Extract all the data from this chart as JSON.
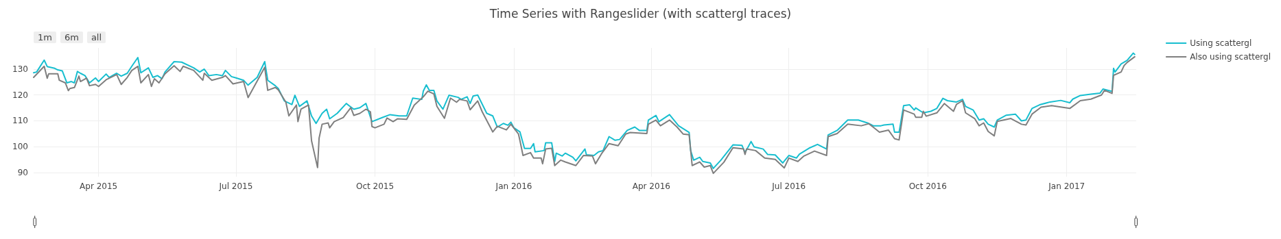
{
  "chart_data": {
    "type": "line",
    "title": "Time Series with Rangeslider (with scattergl traces)",
    "annotations": [
      "1m",
      "6m",
      "all"
    ],
    "xlim": [
      "2015-02-17",
      "2017-02-16"
    ],
    "xticks": [
      {
        "value": "2015-04-01",
        "label": "Apr 2015"
      },
      {
        "value": "2015-07-01",
        "label": "Jul 2015"
      },
      {
        "value": "2015-10-01",
        "label": "Oct 2015"
      },
      {
        "value": "2016-01-01",
        "label": "Jan 2016"
      },
      {
        "value": "2016-04-01",
        "label": "Apr 2016"
      },
      {
        "value": "2016-07-01",
        "label": "Jul 2016"
      },
      {
        "value": "2016-10-01",
        "label": "Oct 2016"
      },
      {
        "value": "2017-01-01",
        "label": "Jan 2017"
      }
    ],
    "ylim": [
      88.4,
      138.2
    ],
    "yticks": [
      90,
      100,
      110,
      120,
      130
    ],
    "grid": true,
    "legend": "top right",
    "marker": "none",
    "line_style": "solid",
    "series": [
      {
        "name": "Using scattergl",
        "color": "#17becf",
        "x": [
          "2015-02-17",
          "2015-02-19",
          "2015-02-24",
          "2015-02-26",
          "2015-03-03",
          "2015-03-05",
          "2015-03-08",
          "2015-03-11",
          "2015-03-14",
          "2015-03-16",
          "2015-03-18",
          "2015-03-20",
          "2015-03-23",
          "2015-03-26",
          "2015-03-30",
          "2015-04-01",
          "2015-04-06",
          "2015-04-08",
          "2015-04-13",
          "2015-04-16",
          "2015-04-20",
          "2015-04-23",
          "2015-04-27",
          "2015-04-29",
          "2015-05-04",
          "2015-05-07",
          "2015-05-10",
          "2015-05-13",
          "2015-05-15",
          "2015-05-21",
          "2015-05-26",
          "2015-06-03",
          "2015-06-07",
          "2015-06-10",
          "2015-06-13",
          "2015-06-18",
          "2015-06-22",
          "2015-06-24",
          "2015-06-28",
          "2015-07-01",
          "2015-07-06",
          "2015-07-09",
          "2015-07-15",
          "2015-07-20",
          "2015-07-22",
          "2015-07-27",
          "2015-07-29",
          "2015-08-02",
          "2015-08-07",
          "2015-08-09",
          "2015-08-12",
          "2015-08-17",
          "2015-08-20",
          "2015-08-23",
          "2015-08-27",
          "2015-08-30",
          "2015-09-01",
          "2015-09-06",
          "2015-09-12",
          "2015-09-17",
          "2015-09-21",
          "2015-09-25",
          "2015-09-29",
          "2015-10-06",
          "2015-10-11",
          "2015-10-17",
          "2015-10-22",
          "2015-10-26",
          "2015-11-01",
          "2015-11-02",
          "2015-11-04",
          "2015-11-06",
          "2015-11-09",
          "2015-11-11",
          "2015-11-15",
          "2015-11-19",
          "2015-11-25",
          "2015-11-27",
          "2015-12-01",
          "2015-12-03",
          "2015-12-05",
          "2015-12-08",
          "2015-12-14",
          "2015-12-18",
          "2015-12-21",
          "2015-12-25",
          "2015-12-28",
          "2015-12-30",
          "2016-01-01",
          "2016-01-05",
          "2016-01-08",
          "2016-01-12",
          "2016-01-14",
          "2016-01-15",
          "2016-01-21",
          "2016-01-22",
          "2016-01-26",
          "2016-01-28",
          "2016-01-29",
          "2016-02-02",
          "2016-02-04",
          "2016-02-09",
          "2016-02-11",
          "2016-02-17",
          "2016-02-18",
          "2016-02-23",
          "2016-02-26",
          "2016-02-29",
          "2016-03-04",
          "2016-03-08",
          "2016-03-11",
          "2016-03-16",
          "2016-03-21",
          "2016-03-24",
          "2016-03-29",
          "2016-03-30",
          "2016-04-04",
          "2016-04-06",
          "2016-04-13",
          "2016-04-19",
          "2016-04-26",
          "2016-04-27",
          "2016-04-29",
          "2016-05-03",
          "2016-05-05",
          "2016-05-10",
          "2016-05-12",
          "2016-05-17",
          "2016-05-25",
          "2016-05-31",
          "2016-06-02",
          "2016-06-06",
          "2016-06-08",
          "2016-06-14",
          "2016-06-17",
          "2016-06-22",
          "2016-06-27",
          "2016-07-01",
          "2016-07-06",
          "2016-07-08",
          "2016-07-15",
          "2016-07-20",
          "2016-07-26",
          "2016-07-27",
          "2016-08-02",
          "2016-08-09",
          "2016-08-16",
          "2016-08-22",
          "2016-08-26",
          "2016-08-31",
          "2016-09-02",
          "2016-09-08",
          "2016-09-09",
          "2016-09-12",
          "2016-09-15",
          "2016-09-19",
          "2016-09-22",
          "2016-09-23",
          "2016-09-28",
          "2016-10-03",
          "2016-10-07",
          "2016-10-11",
          "2016-10-14",
          "2016-10-20",
          "2016-10-24",
          "2016-10-26",
          "2016-10-31",
          "2016-11-04",
          "2016-11-07",
          "2016-11-10",
          "2016-11-14",
          "2016-11-16",
          "2016-11-22",
          "2016-11-28",
          "2016-12-02",
          "2016-12-05",
          "2016-12-09",
          "2016-12-14",
          "2016-12-21",
          "2016-12-28",
          "2017-01-03",
          "2017-01-05",
          "2017-01-10",
          "2017-01-17",
          "2017-01-23",
          "2017-01-25",
          "2017-01-31",
          "2017-02-01",
          "2017-02-02",
          "2017-02-06",
          "2017-02-10",
          "2017-02-14",
          "2017-02-15"
        ],
        "values": [
          128.6,
          128.9,
          133.5,
          131,
          130.3,
          129.7,
          129.3,
          124.7,
          125.2,
          124.7,
          129.1,
          128.4,
          127.5,
          124.7,
          126.6,
          125.2,
          128.1,
          126.8,
          128.4,
          127.3,
          128.4,
          131.1,
          134.5,
          128.6,
          130.5,
          126.8,
          127.5,
          126.3,
          128.9,
          132.9,
          132.7,
          130.5,
          128.9,
          130,
          127.5,
          127.9,
          127.5,
          129.5,
          127.1,
          126.6,
          125.7,
          123.8,
          126.8,
          132.9,
          125.7,
          123.6,
          122.5,
          117.7,
          116.3,
          119.9,
          115.6,
          117.7,
          111.9,
          109,
          112.9,
          114.5,
          110.8,
          112.9,
          116.7,
          114.5,
          115.1,
          116.7,
          109.7,
          111.3,
          112.4,
          111.9,
          111.9,
          118.8,
          118.3,
          121.5,
          123.9,
          121.8,
          121.8,
          117.7,
          114.5,
          119.9,
          119.1,
          118.3,
          119.3,
          116.7,
          119.6,
          120,
          112.9,
          111.9,
          107.6,
          109,
          108.3,
          109.5,
          107.3,
          105.7,
          99.3,
          99.3,
          101.2,
          98,
          98.5,
          101.5,
          101.5,
          94.3,
          97.5,
          96.4,
          97.5,
          95.9,
          94.5,
          99.1,
          96.9,
          96.6,
          98,
          98.5,
          103.9,
          102.5,
          102.8,
          106.3,
          107.6,
          106.3,
          106.3,
          110.3,
          112.1,
          109.7,
          112.4,
          108.1,
          105.5,
          98.5,
          94.8,
          95.9,
          94.3,
          93.7,
          91.6,
          94.8,
          100.7,
          100.5,
          97.7,
          102,
          99.9,
          99.1,
          97,
          96.8,
          93.7,
          96.6,
          95.6,
          97.1,
          99.6,
          100.9,
          99.1,
          104.5,
          106.3,
          110.3,
          110.3,
          109.2,
          108.1,
          108.1,
          108.4,
          108.7,
          105.6,
          105.6,
          115.9,
          116.2,
          114.2,
          115,
          113.1,
          113.7,
          114.8,
          118.7,
          117.8,
          117.3,
          118.3,
          115.6,
          114.2,
          110.3,
          110.8,
          108.7,
          107.6,
          110.3,
          112.2,
          112.6,
          110,
          110.3,
          114.8,
          116.2,
          117.3,
          117.9,
          117,
          118.4,
          119.8,
          120.3,
          120.7,
          122.3,
          121.4,
          130.3,
          128.9,
          132,
          133.4,
          136.2,
          135.7
        ]
      },
      {
        "name": "Also using scattergl",
        "color": "#7f7f7f",
        "x": [
          "2015-02-17",
          "2015-02-24",
          "2015-02-26",
          "2015-02-27",
          "2015-03-05",
          "2015-03-06",
          "2015-03-10",
          "2015-03-12",
          "2015-03-13",
          "2015-03-16",
          "2015-03-19",
          "2015-03-20",
          "2015-03-24",
          "2015-03-26",
          "2015-03-30",
          "2015-04-01",
          "2015-04-06",
          "2015-04-13",
          "2015-04-16",
          "2015-04-20",
          "2015-04-23",
          "2015-04-27",
          "2015-04-29",
          "2015-05-04",
          "2015-05-06",
          "2015-05-08",
          "2015-05-11",
          "2015-05-15",
          "2015-05-21",
          "2015-05-25",
          "2015-05-27",
          "2015-06-03",
          "2015-06-09",
          "2015-06-10",
          "2015-06-15",
          "2015-06-22",
          "2015-06-24",
          "2015-06-29",
          "2015-07-06",
          "2015-07-09",
          "2015-07-20",
          "2015-07-22",
          "2015-07-27",
          "2015-07-29",
          "2015-08-03",
          "2015-08-05",
          "2015-08-10",
          "2015-08-11",
          "2015-08-13",
          "2015-08-18",
          "2015-08-20",
          "2015-08-24",
          "2015-08-25",
          "2015-08-27",
          "2015-08-31",
          "2015-09-01",
          "2015-09-04",
          "2015-09-10",
          "2015-09-15",
          "2015-09-17",
          "2015-09-21",
          "2015-09-25",
          "2015-09-28",
          "2015-09-29",
          "2015-10-01",
          "2015-10-07",
          "2015-10-09",
          "2015-10-13",
          "2015-10-16",
          "2015-10-22",
          "2015-10-27",
          "2015-11-02",
          "2015-11-05",
          "2015-11-09",
          "2015-11-11",
          "2015-11-16",
          "2015-11-20",
          "2015-11-24",
          "2015-11-26",
          "2015-12-01",
          "2015-12-03",
          "2015-12-08",
          "2015-12-11",
          "2015-12-18",
          "2015-12-21",
          "2015-12-27",
          "2015-12-30",
          "2016-01-04",
          "2016-01-05",
          "2016-01-07",
          "2016-01-12",
          "2016-01-14",
          "2016-01-19",
          "2016-01-20",
          "2016-01-22",
          "2016-01-26",
          "2016-01-28",
          "2016-02-01",
          "2016-02-04",
          "2016-02-11",
          "2016-02-16",
          "2016-02-22",
          "2016-02-24",
          "2016-02-28",
          "2016-03-04",
          "2016-03-10",
          "2016-03-15",
          "2016-03-18",
          "2016-03-29",
          "2016-03-30",
          "2016-04-04",
          "2016-04-07",
          "2016-04-13",
          "2016-04-18",
          "2016-04-22",
          "2016-04-26",
          "2016-04-28",
          "2016-05-03",
          "2016-05-06",
          "2016-05-10",
          "2016-05-12",
          "2016-05-19",
          "2016-05-25",
          "2016-06-01",
          "2016-06-02",
          "2016-06-03",
          "2016-06-09",
          "2016-06-15",
          "2016-06-22",
          "2016-06-28",
          "2016-07-01",
          "2016-07-07",
          "2016-07-11",
          "2016-07-18",
          "2016-07-26",
          "2016-07-27",
          "2016-08-02",
          "2016-08-09",
          "2016-08-18",
          "2016-08-23",
          "2016-08-30",
          "2016-09-05",
          "2016-09-09",
          "2016-09-12",
          "2016-09-15",
          "2016-09-22",
          "2016-09-23",
          "2016-09-27",
          "2016-09-28",
          "2016-09-30",
          "2016-10-07",
          "2016-10-12",
          "2016-10-18",
          "2016-10-20",
          "2016-10-24",
          "2016-10-26",
          "2016-11-01",
          "2016-11-04",
          "2016-11-07",
          "2016-11-10",
          "2016-11-14",
          "2016-11-16",
          "2016-11-25",
          "2016-12-02",
          "2016-12-05",
          "2016-12-09",
          "2016-12-15",
          "2016-12-22",
          "2017-01-03",
          "2017-01-10",
          "2017-01-17",
          "2017-01-24",
          "2017-01-26",
          "2017-01-31",
          "2017-02-01",
          "2017-02-06",
          "2017-02-08",
          "2017-02-10",
          "2017-02-15"
        ],
        "values": [
          126.8,
          131.1,
          126.5,
          128.2,
          128.2,
          125.7,
          124.7,
          121.7,
          122.5,
          122.9,
          127.3,
          125.2,
          126.5,
          123.6,
          124.1,
          123.3,
          125.9,
          127.9,
          124.1,
          126.8,
          129.5,
          131.1,
          124.7,
          127.9,
          123.3,
          126.3,
          124.7,
          128.2,
          131.3,
          129.1,
          131.1,
          129.5,
          125.7,
          128.4,
          125.7,
          126.8,
          127.5,
          124.3,
          125.2,
          119,
          130.7,
          121.8,
          122.9,
          122,
          117.2,
          111.9,
          116.1,
          109.7,
          114.5,
          116.1,
          102.3,
          91.9,
          103.3,
          108.7,
          109.2,
          107.3,
          109.7,
          111.3,
          115.1,
          112.1,
          112.9,
          114.5,
          113.5,
          107.8,
          107.3,
          108.7,
          111.1,
          109.7,
          110.8,
          110.6,
          116.1,
          119.3,
          121.5,
          120.4,
          115.6,
          111,
          118.8,
          117.2,
          118.3,
          117.7,
          114.3,
          117.7,
          113.5,
          105.7,
          107.9,
          106.5,
          108.7,
          104.9,
          102.3,
          96.6,
          97.7,
          95.6,
          95.6,
          93.4,
          99.1,
          99.4,
          92.7,
          94.8,
          94.1,
          92.7,
          96.6,
          96.4,
          93.4,
          97.3,
          101.2,
          100.4,
          104.9,
          105.5,
          105.1,
          108.7,
          110.3,
          108.1,
          110.3,
          107.6,
          104.9,
          104.6,
          92.7,
          94.1,
          92.1,
          92.7,
          89.7,
          94,
          99.6,
          99.1,
          97,
          99.1,
          98.5,
          95.6,
          95.1,
          91.8,
          95.6,
          94.3,
          96.4,
          98.3,
          96.6,
          103.9,
          105.1,
          108.7,
          108.1,
          108.9,
          105.6,
          106.4,
          103.1,
          102.6,
          114.2,
          112.6,
          111.4,
          111.4,
          113.7,
          111.8,
          113.1,
          116.7,
          113.7,
          116.4,
          117.8,
          113.1,
          110.9,
          108.1,
          109.2,
          105.9,
          104.2,
          109.8,
          110.9,
          108.7,
          108.4,
          112.6,
          115.3,
          115.9,
          114.8,
          117.8,
          118.4,
          120,
          121.8,
          120.6,
          127.6,
          128.9,
          131.4,
          132.6,
          134.8
        ]
      }
    ]
  }
}
